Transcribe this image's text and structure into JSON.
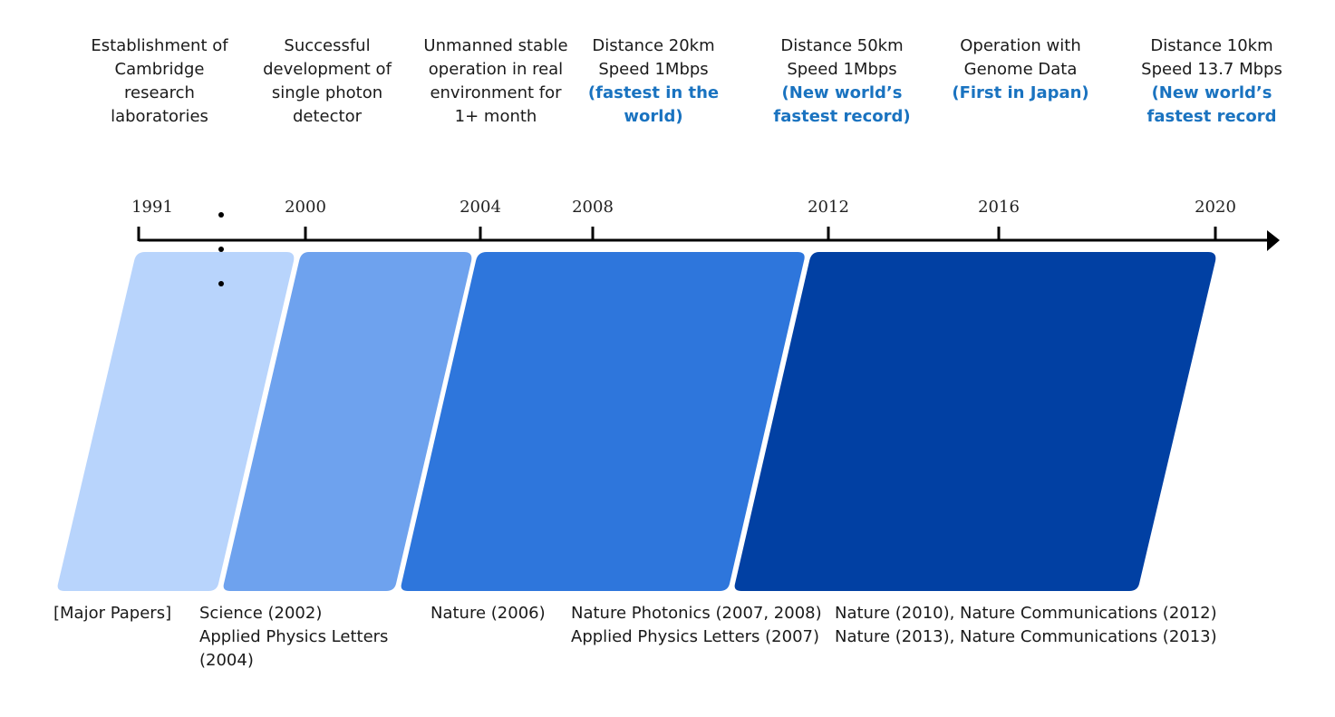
{
  "milestones": [
    {
      "lines": [
        "Establishment of",
        "Cambridge",
        "research",
        "laboratories"
      ],
      "highlight": []
    },
    {
      "lines": [
        "Successful",
        "development of",
        "single photon",
        "detector"
      ],
      "highlight": []
    },
    {
      "lines": [
        "Unmanned stable",
        "operation in real",
        "environment for",
        "1+ month"
      ],
      "highlight": []
    },
    {
      "lines": [
        "Distance 20km",
        "Speed 1Mbps",
        "(fastest in the",
        "world)"
      ],
      "highlight": [
        2,
        3
      ]
    },
    {
      "lines": [
        "Distance 50km",
        "Speed 1Mbps",
        "(New world’s",
        "fastest record)"
      ],
      "highlight": [
        2,
        3
      ]
    },
    {
      "lines": [
        "Operation with",
        "Genome Data",
        "(First in Japan)"
      ],
      "highlight": [
        2
      ]
    },
    {
      "lines": [
        "Distance 10km",
        "Speed 13.7 Mbps",
        "(New world’s",
        "fastest record"
      ],
      "highlight": [
        2,
        3
      ]
    }
  ],
  "years": [
    "1991",
    "2000",
    "2004",
    "2008",
    "2012",
    "2016",
    "2020"
  ],
  "papers": [
    {
      "lines": [
        "[Major Papers]"
      ]
    },
    {
      "lines": [
        "Science (2002)",
        "Applied Physics Letters",
        "(2004)"
      ]
    },
    {
      "lines": [
        "Nature (2006)"
      ]
    },
    {
      "lines": [
        "Nature Photonics (2007, 2008)",
        "Applied Physics Letters (2007)"
      ]
    },
    {
      "lines": [
        "Nature (2010), Nature Communications (2012)",
        "Nature (2013), Nature Communications (2013)"
      ]
    }
  ],
  "colors": {
    "phase1": "#b8d4fc",
    "phase2": "#6ea2ee",
    "phase3": "#2e76dc",
    "phase4": "#0140a3",
    "highlight": "#1a73c0",
    "axis": "#000000"
  }
}
